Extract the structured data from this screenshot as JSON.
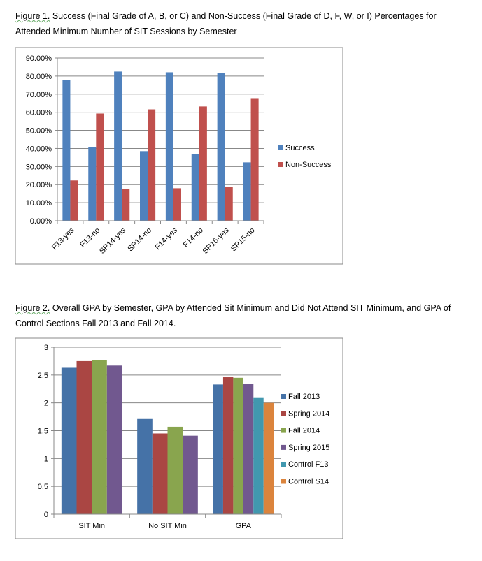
{
  "figure1": {
    "label": "Figure 1.",
    "caption": " Success (Final Grade of A, B, or C) and Non-Success (Final Grade of D, F, W, or I) Percentages for Attended Minimum Number of SIT Sessions by Semester"
  },
  "figure2": {
    "label": "Figure 2.",
    "caption": " Overall GPA by Semester, GPA by Attended Sit Minimum and Did Not Attend SIT Minimum, and GPA of Control Sections Fall 2013  and Fall 2014."
  },
  "chart_data": [
    {
      "type": "bar",
      "title": "",
      "categories": [
        "F13-yes",
        "F13-no",
        "SP14-yes",
        "SP14-no",
        "F14-yes",
        "F14-no",
        "SP15-yes",
        "SP15-no"
      ],
      "series": [
        {
          "name": "Success",
          "color": "#4f81bd",
          "values": [
            77.9,
            40.8,
            82.5,
            38.5,
            82.1,
            36.8,
            81.5,
            32.3
          ]
        },
        {
          "name": "Non-Success",
          "color": "#c0504d",
          "values": [
            22.3,
            59.3,
            17.6,
            61.6,
            18.0,
            63.2,
            18.8,
            67.8
          ]
        }
      ],
      "yticks": [
        "0.00%",
        "10.00%",
        "20.00%",
        "30.00%",
        "40.00%",
        "50.00%",
        "60.00%",
        "70.00%",
        "80.00%",
        "90.00%"
      ],
      "ylim": [
        0,
        90
      ],
      "grid": true,
      "legend": "right"
    },
    {
      "type": "bar",
      "title": "",
      "categories": [
        "SIT Min",
        "No SIT Min",
        "GPA"
      ],
      "series": [
        {
          "name": "Fall 2013",
          "color": "#4572a7",
          "values": [
            2.63,
            1.71,
            2.33
          ]
        },
        {
          "name": "Spring 2014",
          "color": "#aa4643",
          "values": [
            2.75,
            1.45,
            2.46
          ]
        },
        {
          "name": "Fall 2014",
          "color": "#89a54e",
          "values": [
            2.77,
            1.57,
            2.45
          ]
        },
        {
          "name": "Spring 2015",
          "color": "#71588f",
          "values": [
            2.67,
            1.41,
            2.34
          ]
        },
        {
          "name": "Control F13",
          "color": "#4198af",
          "values": [
            null,
            null,
            2.1
          ]
        },
        {
          "name": "Control S14",
          "color": "#db843d",
          "values": [
            null,
            null,
            2.0
          ]
        }
      ],
      "yticks": [
        "0",
        "0.5",
        "1",
        "1.5",
        "2",
        "2.5",
        "3"
      ],
      "ylim": [
        0,
        3
      ],
      "grid": true,
      "legend": "right"
    }
  ]
}
